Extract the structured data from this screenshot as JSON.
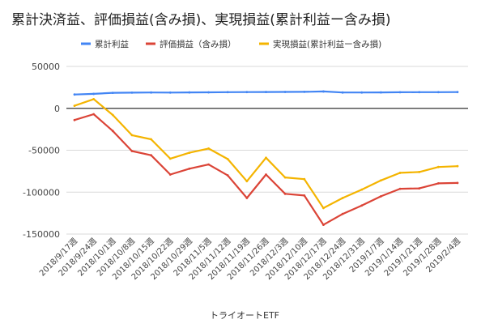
{
  "chart_data": {
    "type": "line",
    "title": "累計決済益、評価損益(含み損)、実現損益(累計利益ー含み損)",
    "xlabel": "トライオートETF",
    "ylabel": "",
    "ylim": [
      -150000,
      50000
    ],
    "yticks": [
      50000,
      0,
      -50000,
      -100000,
      -150000
    ],
    "grid": true,
    "legend_position": "top",
    "categories": [
      "2018/9/17週",
      "2018/9/24週",
      "2018/10/1週",
      "2018/10/8週",
      "2018/10/15週",
      "2018/10/22週",
      "2018/10/29週",
      "2018/11/5週",
      "2018/11/12週",
      "2018/11/19週",
      "2018/11/26週",
      "2018/12/3週",
      "2018/12/10週",
      "2018/12/17週",
      "2018/12/24週",
      "2018/12/31週",
      "2019/1/7週",
      "2019/1/14週",
      "2019/1/21週",
      "2019/1/28週",
      "2019/2/4週"
    ],
    "series": [
      {
        "name": "累計利益",
        "color": "#4285f4",
        "values": [
          16500,
          17200,
          18500,
          18700,
          18900,
          18800,
          19000,
          19100,
          19300,
          19400,
          19500,
          19600,
          19700,
          20100,
          18900,
          18900,
          19000,
          19200,
          19300,
          19300,
          19400
        ]
      },
      {
        "name": "評価損益（含み損）",
        "color": "#db4437",
        "values": [
          -14000,
          -7000,
          -27000,
          -51000,
          -56000,
          -79000,
          -72000,
          -67000,
          -80000,
          -107000,
          -79000,
          -102000,
          -104000,
          -139000,
          -126000,
          -116000,
          -105000,
          -96000,
          -95500,
          -89500,
          -89000
        ]
      },
      {
        "name": "実現損益(累計利益ー含み損)",
        "color": "#f4b400",
        "values": [
          3000,
          11000,
          -8000,
          -32000,
          -37000,
          -60000,
          -53000,
          -48000,
          -60500,
          -87000,
          -59000,
          -82500,
          -84500,
          -119000,
          -107000,
          -97000,
          -86000,
          -77000,
          -76000,
          -70000,
          -69000
        ]
      }
    ]
  }
}
